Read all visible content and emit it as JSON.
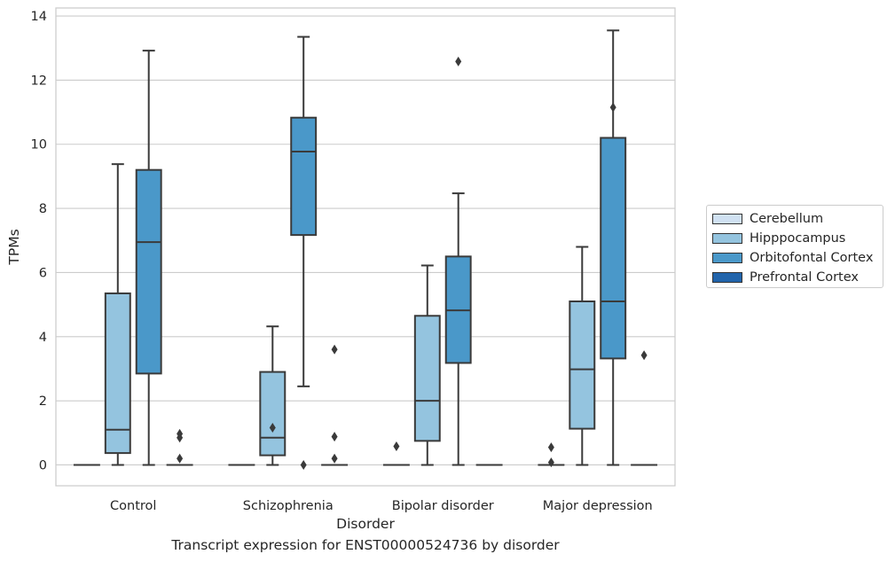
{
  "caption": "Transcript expression for ENST00000524736 by disorder",
  "chart_data": {
    "type": "box",
    "title": "",
    "xlabel": "Disorder",
    "ylabel": "TPMs",
    "categories": [
      "Control",
      "Schizophrenia",
      "Bipolar disorder",
      "Major depression"
    ],
    "ylim": [
      -0.65,
      14.25
    ],
    "yticks": [
      0,
      2,
      4,
      6,
      8,
      10,
      12,
      14
    ],
    "grid": "horizontal",
    "legend_position": "right",
    "series": [
      {
        "name": "Cerebellum",
        "color": "#d0e1f2",
        "boxes": [
          {
            "whislo": 0,
            "q1": 0,
            "med": 0,
            "q3": 0,
            "whishi": 0,
            "fliers": []
          },
          {
            "whislo": 0,
            "q1": 0,
            "med": 0,
            "q3": 0,
            "whishi": 0,
            "fliers": []
          },
          {
            "whislo": 0,
            "q1": 0,
            "med": 0,
            "q3": 0,
            "whishi": 0,
            "fliers": [
              0.58
            ]
          },
          {
            "whislo": 0,
            "q1": 0,
            "med": 0,
            "q3": 0,
            "whishi": 0,
            "fliers": [
              0.08,
              0.55
            ]
          }
        ]
      },
      {
        "name": "Hipppocampus",
        "color": "#94c4df",
        "boxes": [
          {
            "whislo": 0,
            "q1": 0.37,
            "med": 1.1,
            "q3": 5.35,
            "whishi": 9.38,
            "fliers": []
          },
          {
            "whislo": 0,
            "q1": 0.3,
            "med": 0.85,
            "q3": 2.9,
            "whishi": 4.32,
            "fliers": [
              1.16
            ]
          },
          {
            "whislo": 0,
            "q1": 0.75,
            "med": 2.0,
            "q3": 4.65,
            "whishi": 6.22,
            "fliers": []
          },
          {
            "whislo": 0,
            "q1": 1.13,
            "med": 2.98,
            "q3": 5.1,
            "whishi": 6.8,
            "fliers": []
          }
        ]
      },
      {
        "name": "Orbitofontal Cortex",
        "color": "#4a98c9",
        "boxes": [
          {
            "whislo": 0,
            "q1": 2.85,
            "med": 6.95,
            "q3": 9.2,
            "whishi": 12.92,
            "fliers": []
          },
          {
            "whislo": 2.45,
            "q1": 7.17,
            "med": 9.77,
            "q3": 10.83,
            "whishi": 13.35,
            "fliers": [
              0.0
            ]
          },
          {
            "whislo": 0,
            "q1": 3.18,
            "med": 4.82,
            "q3": 6.5,
            "whishi": 8.47,
            "fliers": [
              12.58
            ]
          },
          {
            "whislo": 0,
            "q1": 3.32,
            "med": 5.1,
            "q3": 10.2,
            "whishi": 13.55,
            "fliers": [
              11.15
            ]
          }
        ]
      },
      {
        "name": "Prefrontal Cortex",
        "color": "#2164ab",
        "boxes": [
          {
            "whislo": 0,
            "q1": 0,
            "med": 0,
            "q3": 0,
            "whishi": 0,
            "fliers": [
              0.2,
              0.85,
              0.97
            ]
          },
          {
            "whislo": 0,
            "q1": 0,
            "med": 0,
            "q3": 0,
            "whishi": 0,
            "fliers": [
              0.2,
              0.88,
              3.6
            ]
          },
          {
            "whislo": 0,
            "q1": 0,
            "med": 0,
            "q3": 0,
            "whishi": 0,
            "fliers": []
          },
          {
            "whislo": 0,
            "q1": 0,
            "med": 0,
            "q3": 0,
            "whishi": 0,
            "fliers": [
              3.42
            ]
          }
        ]
      }
    ]
  }
}
